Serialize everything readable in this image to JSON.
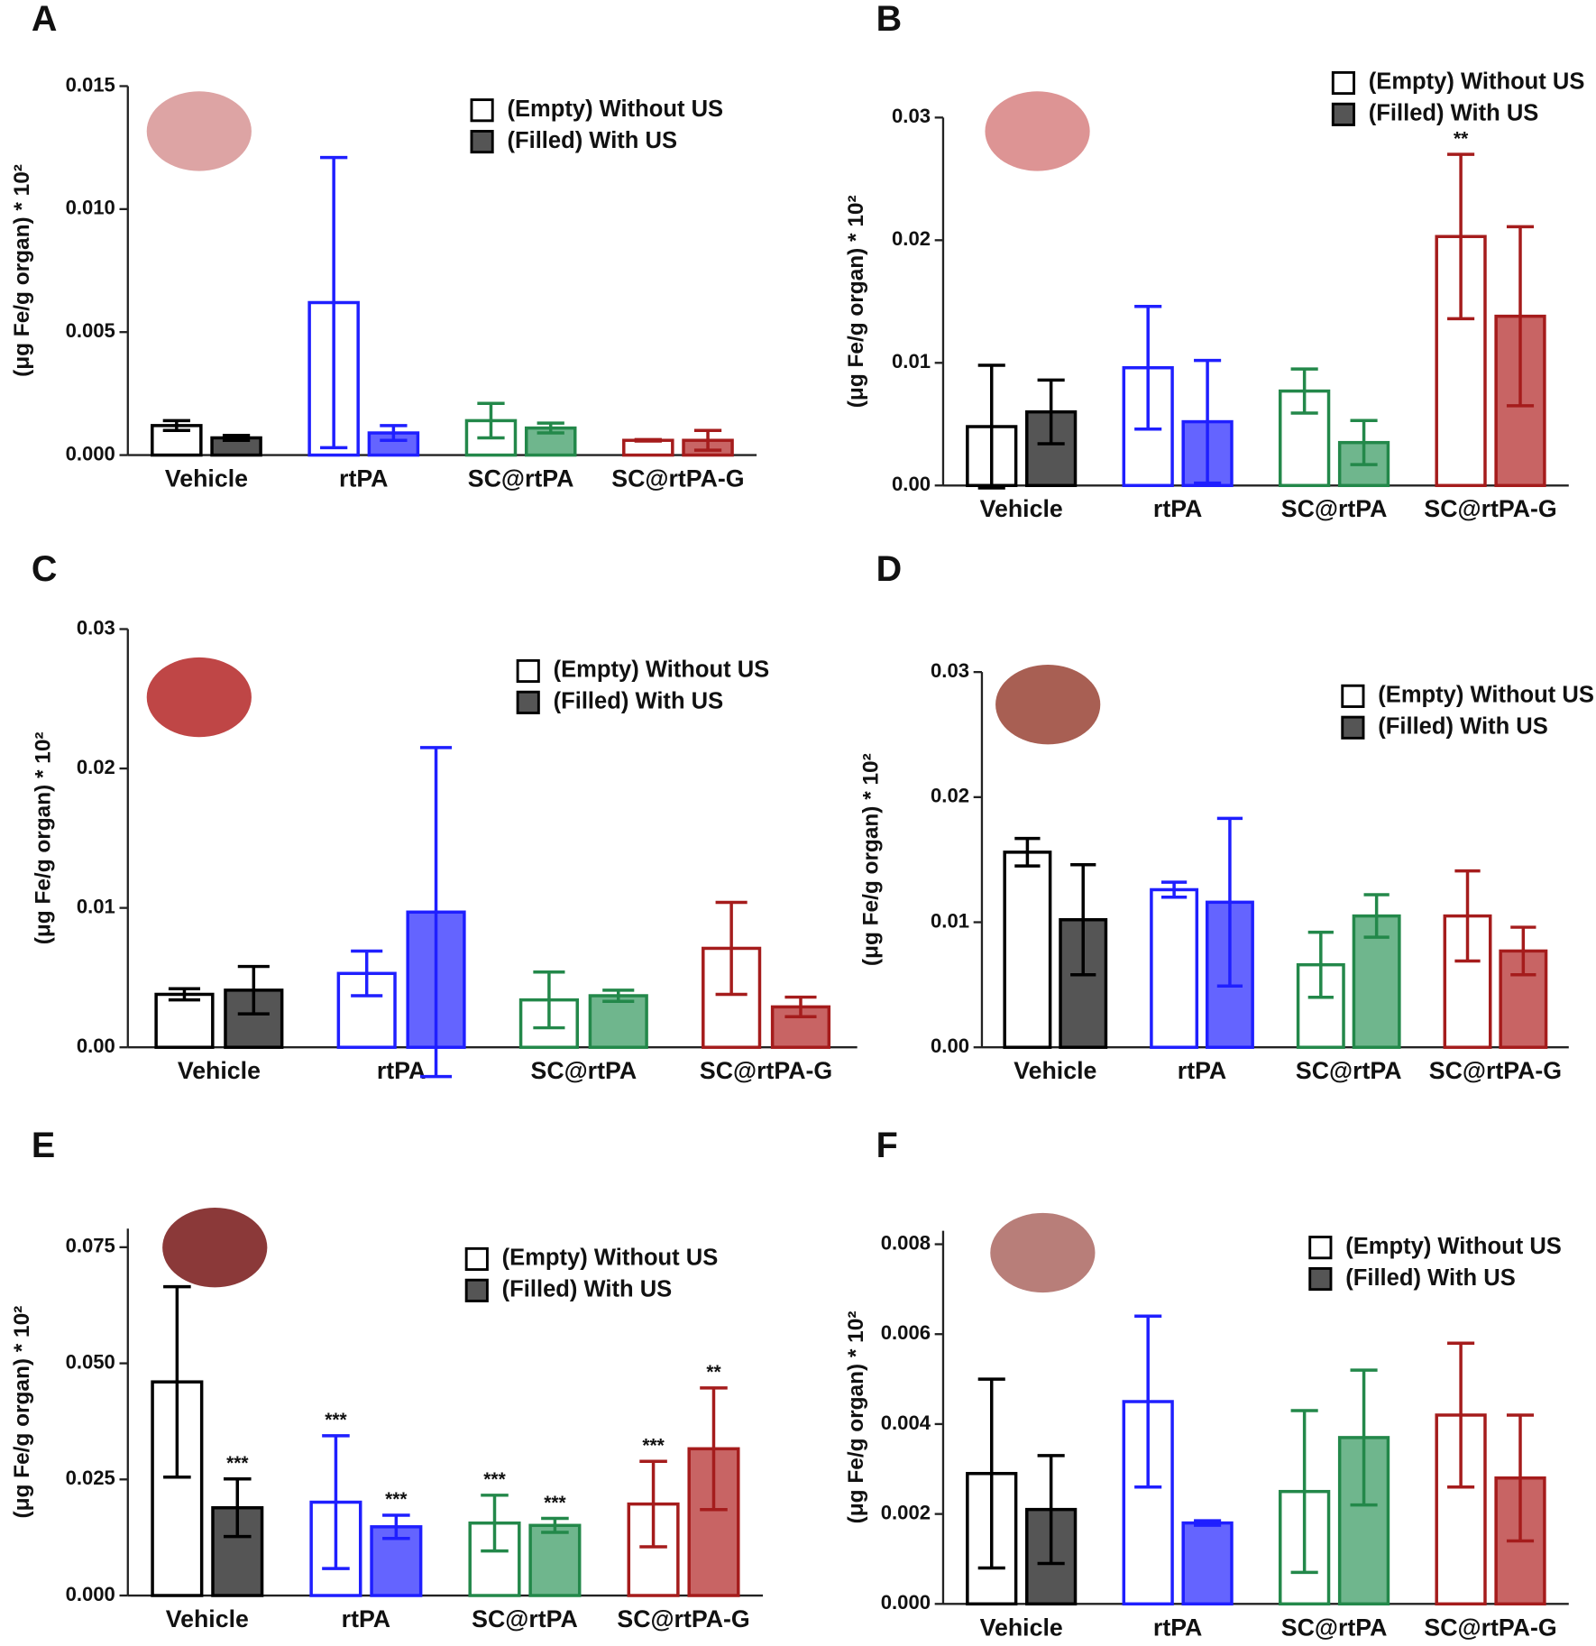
{
  "chart_data": [
    {
      "type": "bar",
      "panel": "A",
      "y_label": "(μg Fe/g organ) * 10²",
      "categories": [
        "Vehicle",
        "rtPA",
        "SC@rtPA",
        "SC@rtPA-G"
      ],
      "colors": [
        "#000000",
        "#1f1fff",
        "#23884a",
        "#a51c1c"
      ],
      "fill_colors": [
        "#555555",
        "#6464ff",
        "#6fb68d",
        "#c86464"
      ],
      "series": [
        {
          "name": "(Empty) Without US",
          "style": "empty",
          "values": [
            0.0012,
            0.0062,
            0.0014,
            0.0006
          ],
          "errors": [
            0.0002,
            0.0059,
            0.0007,
            3e-05
          ]
        },
        {
          "name": "(Filled) With US",
          "style": "filled",
          "values": [
            0.0007,
            0.0009,
            0.0011,
            0.0006
          ],
          "errors": [
            0.0001,
            0.0003,
            0.0002,
            0.0004
          ]
        }
      ],
      "ylim": [
        0,
        0.015
      ],
      "yticks": [
        {
          "value": 0,
          "label": "0.000"
        },
        0.005,
        {
          "value": 0.01,
          "label": "0.010"
        },
        0.015
      ]
    },
    {
      "type": "bar",
      "panel": "B",
      "y_label": "(μg Fe/g organ) * 10²",
      "categories": [
        "Vehicle",
        "rtPA",
        "SC@rtPA",
        "SC@rtPA-G"
      ],
      "colors": [
        "#000000",
        "#1f1fff",
        "#23884a",
        "#a51c1c"
      ],
      "fill_colors": [
        "#555555",
        "#6464ff",
        "#6fb68d",
        "#c86464"
      ],
      "series": [
        {
          "name": "(Empty) Without US",
          "style": "empty",
          "values": [
            0.0048,
            0.0096,
            0.0077,
            0.0203
          ],
          "errors": [
            0.005,
            0.005,
            0.0018,
            0.0067
          ],
          "labels": [
            null,
            null,
            null,
            "**"
          ]
        },
        {
          "name": "(Filled) With US",
          "style": "filled",
          "values": [
            0.006,
            0.0052,
            0.0035,
            0.0138
          ],
          "errors": [
            0.0026,
            0.005,
            0.0018,
            0.0073
          ]
        }
      ],
      "ylim": [
        0,
        0.03
      ],
      "yticks": [
        {
          "value": 0,
          "label": "0.00"
        },
        0.01,
        0.02,
        0.03
      ]
    },
    {
      "type": "bar",
      "panel": "C",
      "y_label": "(μg Fe/g organ) * 10²",
      "categories": [
        "Vehicle",
        "rtPA",
        "SC@rtPA",
        "SC@rtPA-G"
      ],
      "colors": [
        "#000000",
        "#1f1fff",
        "#23884a",
        "#a51c1c"
      ],
      "fill_colors": [
        "#555555",
        "#6464ff",
        "#6fb68d",
        "#c86464"
      ],
      "series": [
        {
          "name": "(Empty) Without US",
          "style": "empty",
          "values": [
            0.0038,
            0.0053,
            0.0034,
            0.0071
          ],
          "errors": [
            0.0004,
            0.0016,
            0.002,
            0.0033
          ]
        },
        {
          "name": "(Filled) With US",
          "style": "filled",
          "values": [
            0.0041,
            0.0097,
            0.0037,
            0.0029
          ],
          "errors": [
            0.0017,
            0.0118,
            0.0004,
            0.0007
          ]
        }
      ],
      "ylim": [
        0,
        0.03
      ],
      "yticks": [
        {
          "value": 0,
          "label": "0.00"
        },
        0.01,
        0.02,
        0.03
      ]
    },
    {
      "type": "bar",
      "panel": "D",
      "y_label": "(μg Fe/g organ) * 10²",
      "categories": [
        "Vehicle",
        "rtPA",
        "SC@rtPA",
        "SC@rtPA-G"
      ],
      "colors": [
        "#000000",
        "#1f1fff",
        "#23884a",
        "#a51c1c"
      ],
      "fill_colors": [
        "#555555",
        "#6464ff",
        "#6fb68d",
        "#c86464"
      ],
      "series": [
        {
          "name": "(Empty) Without US",
          "style": "empty",
          "values": [
            0.0156,
            0.0126,
            0.0066,
            0.0105
          ],
          "errors": [
            0.0011,
            0.0006,
            0.0026,
            0.0036
          ]
        },
        {
          "name": "(Filled) With US",
          "style": "filled",
          "values": [
            0.0102,
            0.0116,
            0.0105,
            0.0077
          ],
          "errors": [
            0.0044,
            0.0067,
            0.0017,
            0.0019
          ]
        }
      ],
      "ylim": [
        0,
        0.03
      ],
      "yticks": [
        {
          "value": 0,
          "label": "0.00"
        },
        0.01,
        0.02,
        0.03
      ]
    },
    {
      "type": "bar",
      "panel": "E",
      "y_label": "(μg Fe/g organ) * 10²",
      "categories": [
        "Vehicle",
        "rtPA",
        "SC@rtPA",
        "SC@rtPA-G"
      ],
      "colors": [
        "#000000",
        "#1f1fff",
        "#23884a",
        "#a51c1c"
      ],
      "fill_colors": [
        "#555555",
        "#6464ff",
        "#6fb68d",
        "#c86464"
      ],
      "series": [
        {
          "name": "(Empty) Without US",
          "style": "empty",
          "values": [
            0.046,
            0.0201,
            0.0156,
            0.0197
          ],
          "errors": [
            0.0205,
            0.0143,
            0.006,
            0.0092
          ],
          "labels": [
            null,
            "***",
            "***",
            "***"
          ]
        },
        {
          "name": "(Filled) With US",
          "style": "filled",
          "values": [
            0.0189,
            0.0148,
            0.0151,
            0.0316
          ],
          "errors": [
            0.0062,
            0.0025,
            0.0015,
            0.0131
          ],
          "labels": [
            "***",
            "***",
            "***",
            "**"
          ]
        }
      ],
      "ylim": [
        0,
        0.079
      ],
      "yticks": [
        {
          "value": 0,
          "label": "0.000"
        },
        0.025,
        {
          "value": 0.05,
          "label": "0.050"
        },
        0.075
      ]
    },
    {
      "type": "bar",
      "panel": "F",
      "y_label": "(μg Fe/g organ) * 10²",
      "categories": [
        "Vehicle",
        "rtPA",
        "SC@rtPA",
        "SC@rtPA-G"
      ],
      "colors": [
        "#000000",
        "#1f1fff",
        "#23884a",
        "#a51c1c"
      ],
      "fill_colors": [
        "#555555",
        "#6464ff",
        "#6fb68d",
        "#c86464"
      ],
      "series": [
        {
          "name": "(Empty) Without US",
          "style": "empty",
          "values": [
            0.0029,
            0.0045,
            0.0025,
            0.0042
          ],
          "errors": [
            0.0021,
            0.0019,
            0.0018,
            0.0016
          ]
        },
        {
          "name": "(Filled) With US",
          "style": "filled",
          "values": [
            0.0021,
            0.0018,
            0.0037,
            0.0028
          ],
          "errors": [
            0.0012,
            5e-05,
            0.0015,
            0.0014
          ]
        }
      ],
      "ylim": [
        0,
        0.0083
      ],
      "yticks": [
        {
          "value": 0,
          "label": "0.000"
        },
        0.002,
        0.004,
        0.006,
        0.008
      ]
    }
  ]
}
